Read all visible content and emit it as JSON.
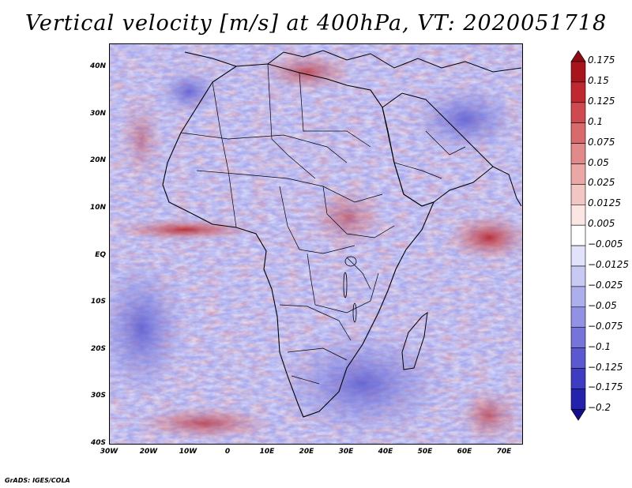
{
  "title": "Vertical velocity [m/s] at 400hPa, VT: 2020051718",
  "credit": "GrADS: IGES/COLA",
  "map": {
    "lat_ticks": [
      "40N",
      "30N",
      "20N",
      "10N",
      "EQ",
      "10S",
      "20S",
      "30S",
      "40S"
    ],
    "lon_ticks": [
      "30W",
      "20W",
      "10W",
      "0",
      "10E",
      "20E",
      "30E",
      "40E",
      "50E",
      "60E",
      "70E"
    ]
  },
  "colorbar": {
    "labels": [
      "0.175",
      "0.15",
      "0.125",
      "0.1",
      "0.075",
      "0.05",
      "0.025",
      "0.0125",
      "0.005",
      "−0.005",
      "−0.0125",
      "−0.025",
      "−0.05",
      "−0.075",
      "−0.1",
      "−0.125",
      "−0.175",
      "−0.2"
    ],
    "colors": [
      "#8b0c12",
      "#a8141c",
      "#c02830",
      "#cf4a50",
      "#d96a6c",
      "#e28a8a",
      "#eaa7a5",
      "#f2c6c3",
      "#fbe6e4",
      "#ffffff",
      "#e2e3fa",
      "#c9caf3",
      "#adaeec",
      "#9192e3",
      "#7474d9",
      "#5a59cf",
      "#3e3cc1",
      "#2421ad",
      "#140e8a"
    ]
  },
  "icons": {
    "pattern": "stippled-velocity-field",
    "countries": "country-boundaries-icon"
  }
}
